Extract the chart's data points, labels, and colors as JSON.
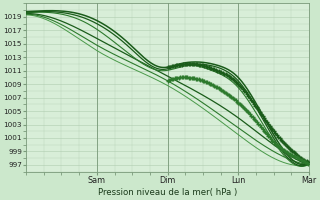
{
  "background_color": "#cce8cc",
  "plot_bg_color": "#d8eed8",
  "grid_color": "#b0ccb0",
  "xlabel": "Pression niveau de la mer( hPa )",
  "xlabels": [
    "Sam",
    "Dim",
    "Lun",
    "Mar"
  ],
  "xtick_pos": [
    24,
    48,
    72,
    96
  ],
  "ylabel_values": [
    997,
    999,
    1001,
    1003,
    1005,
    1007,
    1009,
    1011,
    1013,
    1015,
    1017,
    1019
  ],
  "ylim": [
    996.0,
    1021.0
  ],
  "xlim": [
    0,
    96
  ],
  "total_hours": 96,
  "vline_color": "#7a9a7a",
  "line_dark": "#1a5c1a",
  "line_mid": "#2d7a2d",
  "line_light": "#4a9a4a"
}
